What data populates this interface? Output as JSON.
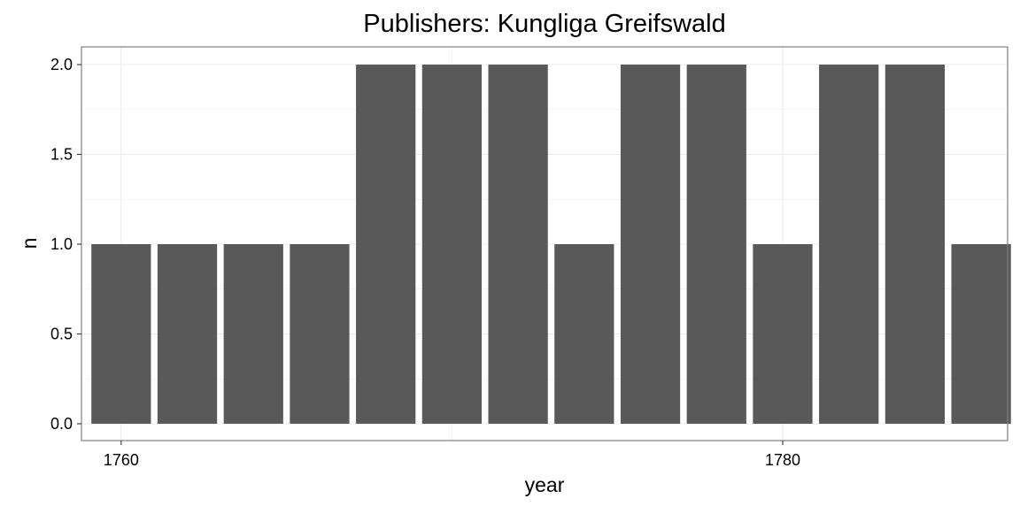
{
  "chart_data": {
    "type": "bar",
    "title": "Publishers: Kungliga Greifswald",
    "xlabel": "year",
    "ylabel": "n",
    "x": [
      1760,
      1762,
      1764,
      1766,
      1768,
      1770,
      1772,
      1774,
      1776,
      1778,
      1780,
      1782,
      1784,
      1786
    ],
    "values": [
      1,
      1,
      1,
      1,
      2,
      2,
      2,
      1,
      2,
      2,
      1,
      2,
      2,
      1
    ],
    "xlim": [
      1758.8,
      1786.8
    ],
    "ylim": [
      0,
      2
    ],
    "x_ticks": [
      1760,
      1780
    ],
    "y_ticks": [
      0.0,
      0.5,
      1.0,
      1.5,
      2.0
    ],
    "grid": true,
    "bar_color": "#595959",
    "grid_color": "#ebebeb",
    "panel_border_color": "#7f7f7f"
  }
}
